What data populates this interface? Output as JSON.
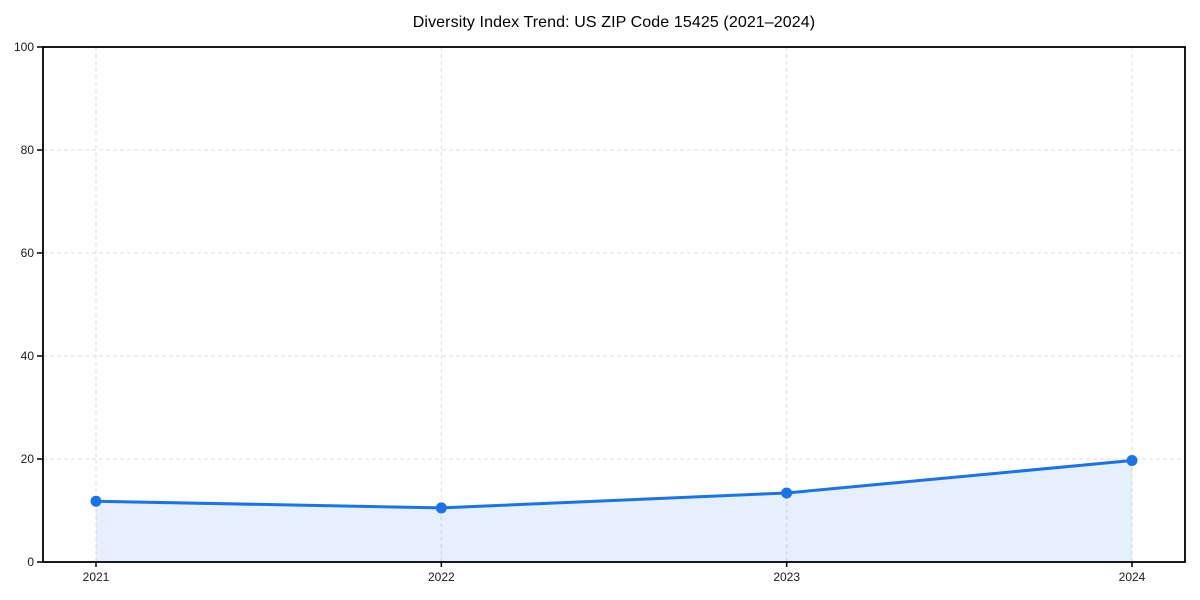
{
  "page": {
    "background": "#ffffff"
  },
  "chart_data": {
    "type": "line",
    "title": "Diversity Index Trend: US ZIP Code 15425 (2021–2024)",
    "categories": [
      "2021",
      "2022",
      "2023",
      "2024"
    ],
    "series": [
      {
        "name": "Diversity Index",
        "values": [
          11.8,
          10.5,
          13.4,
          19.7
        ]
      }
    ],
    "xlabel": "",
    "ylabel": "",
    "ylim": [
      0,
      100
    ],
    "yticks": [
      0,
      20,
      40,
      60,
      80,
      100
    ],
    "grid": "dashed-both-axes",
    "legend_position": "none",
    "area_fill": true,
    "colors": {
      "line": "#1a73e8",
      "marker": "#1a73e8",
      "area": "rgba(26,115,232,0.11)",
      "grid": "#dedede",
      "axis": "#000000",
      "tick_label": "#1a1a1a",
      "title": "#000000"
    }
  }
}
